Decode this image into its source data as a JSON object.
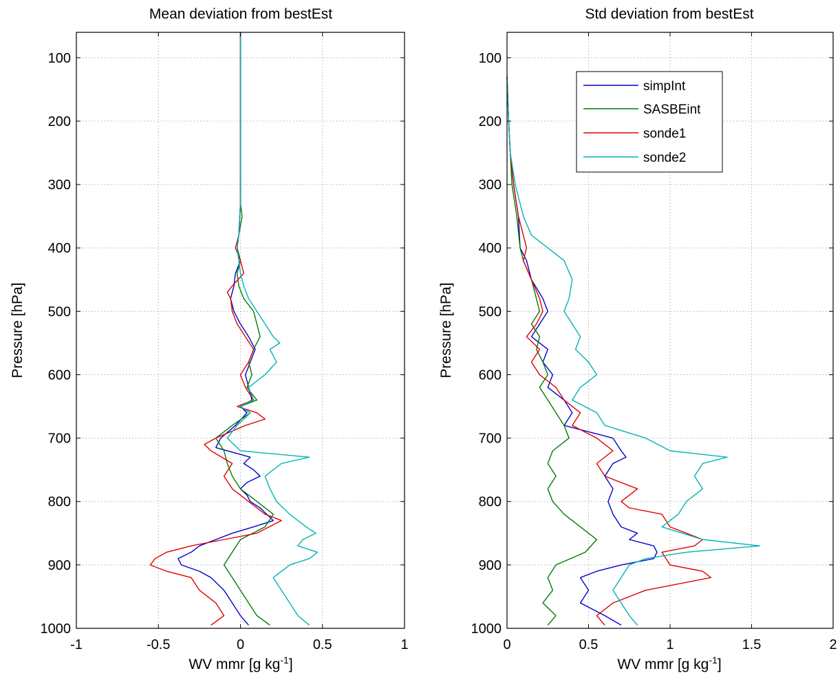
{
  "chart_data": [
    {
      "type": "line",
      "title": "Mean deviation from bestEst",
      "xlabel": "WV mmr [g kg",
      "xlabel_exp": "-1",
      "xlabel_end": "]",
      "ylabel": "Pressure [hPa]",
      "xlim": [
        -1,
        1
      ],
      "ylim": [
        1000,
        60
      ],
      "y_reversed": true,
      "grid": true,
      "xticks": [
        -1,
        -0.5,
        0,
        0.5,
        1
      ],
      "xtick_labels": [
        "-1",
        "-0.5",
        "0",
        "0.5",
        "1"
      ],
      "yticks": [
        100,
        200,
        300,
        400,
        500,
        600,
        700,
        800,
        900,
        1000
      ],
      "ytick_labels": [
        "100",
        "200",
        "300",
        "400",
        "500",
        "600",
        "700",
        "800",
        "900",
        "1000"
      ],
      "series": [
        {
          "name": "simpInt",
          "color": "#0000cc",
          "pressure": [
            60,
            300,
            330,
            380,
            400,
            420,
            440,
            460,
            480,
            500,
            520,
            540,
            560,
            580,
            600,
            620,
            640,
            650,
            660,
            680,
            700,
            715,
            730,
            740,
            750,
            760,
            770,
            780,
            790,
            800,
            810,
            820,
            830,
            840,
            850,
            860,
            870,
            880,
            890,
            900,
            910,
            920,
            940,
            960,
            980,
            995
          ],
          "value": [
            0,
            0,
            0,
            -0.01,
            -0.02,
            0.0,
            -0.03,
            -0.04,
            -0.06,
            -0.04,
            0.0,
            0.05,
            0.09,
            0.06,
            0.03,
            0.05,
            0.07,
            0.0,
            0.04,
            -0.03,
            -0.12,
            -0.15,
            0.06,
            0.02,
            0.08,
            0.12,
            0.04,
            0.0,
            0.04,
            0.06,
            0.12,
            0.16,
            0.2,
            0.08,
            -0.05,
            -0.15,
            -0.25,
            -0.3,
            -0.38,
            -0.36,
            -0.25,
            -0.18,
            -0.1,
            -0.05,
            0.0,
            0.05
          ]
        },
        {
          "name": "SASBEint",
          "color": "#007a00",
          "pressure": [
            60,
            300,
            330,
            350,
            380,
            400,
            420,
            440,
            460,
            480,
            500,
            520,
            540,
            560,
            580,
            600,
            620,
            640,
            650,
            660,
            680,
            700,
            720,
            740,
            760,
            780,
            800,
            820,
            840,
            860,
            880,
            900,
            920,
            940,
            960,
            980,
            995
          ],
          "value": [
            0,
            0,
            0,
            0.01,
            -0.01,
            -0.02,
            0.0,
            -0.02,
            -0.01,
            0.02,
            0.08,
            0.1,
            0.12,
            0.08,
            0.05,
            0.07,
            0.04,
            0.1,
            0.0,
            0.06,
            -0.05,
            -0.15,
            -0.1,
            -0.08,
            -0.05,
            0.0,
            0.1,
            0.2,
            0.15,
            0.0,
            -0.05,
            -0.1,
            -0.05,
            0.0,
            0.05,
            0.1,
            0.18
          ]
        },
        {
          "name": "sonde1",
          "color": "#dd0000",
          "pressure": [
            60,
            300,
            330,
            380,
            400,
            420,
            440,
            460,
            470,
            480,
            500,
            520,
            540,
            560,
            580,
            600,
            620,
            640,
            650,
            660,
            670,
            680,
            700,
            710,
            720,
            740,
            760,
            780,
            800,
            820,
            830,
            850,
            860,
            870,
            880,
            890,
            900,
            910,
            920,
            940,
            960,
            980,
            995
          ],
          "value": [
            0,
            0,
            0,
            -0.01,
            -0.03,
            0.0,
            0.02,
            -0.05,
            -0.08,
            -0.06,
            -0.05,
            -0.02,
            0.03,
            0.08,
            0.05,
            0.0,
            0.03,
            0.08,
            -0.02,
            0.1,
            0.15,
            0.03,
            -0.15,
            -0.22,
            -0.18,
            -0.05,
            -0.1,
            -0.05,
            0.05,
            0.15,
            0.25,
            0.1,
            -0.1,
            -0.3,
            -0.45,
            -0.52,
            -0.55,
            -0.45,
            -0.3,
            -0.25,
            -0.15,
            -0.1,
            -0.18
          ]
        },
        {
          "name": "sonde2",
          "color": "#00b3b3",
          "pressure": [
            60,
            300,
            330,
            380,
            400,
            420,
            440,
            460,
            480,
            500,
            520,
            540,
            550,
            560,
            580,
            600,
            620,
            640,
            650,
            660,
            680,
            700,
            720,
            730,
            740,
            760,
            780,
            800,
            820,
            840,
            850,
            860,
            870,
            880,
            890,
            900,
            920,
            940,
            960,
            980,
            995
          ],
          "value": [
            0,
            0,
            0,
            -0.01,
            -0.02,
            -0.01,
            0.0,
            0.02,
            0.05,
            0.1,
            0.15,
            0.2,
            0.24,
            0.18,
            0.22,
            0.15,
            0.05,
            0.08,
            0.0,
            0.06,
            -0.02,
            -0.08,
            0.0,
            0.42,
            0.25,
            0.15,
            0.18,
            0.22,
            0.3,
            0.4,
            0.46,
            0.38,
            0.35,
            0.47,
            0.42,
            0.3,
            0.2,
            0.25,
            0.3,
            0.35,
            0.42
          ]
        }
      ]
    },
    {
      "type": "line",
      "title": "Std deviation from bestEst",
      "xlabel": "WV mmr [g kg",
      "xlabel_exp": "-1",
      "xlabel_end": "]",
      "ylabel": "Pressure [hPa]",
      "xlim": [
        0,
        2
      ],
      "ylim": [
        1000,
        60
      ],
      "y_reversed": true,
      "grid": true,
      "legend_position": "top-right",
      "xticks": [
        0,
        0.5,
        1,
        1.5,
        2
      ],
      "xtick_labels": [
        "0",
        "0.5",
        "1",
        "1.5",
        "2"
      ],
      "yticks": [
        100,
        200,
        300,
        400,
        500,
        600,
        700,
        800,
        900,
        1000
      ],
      "ytick_labels": [
        "100",
        "200",
        "300",
        "400",
        "500",
        "600",
        "700",
        "800",
        "900",
        "1000"
      ],
      "series": [
        {
          "name": "simpInt",
          "color": "#0000cc",
          "pressure": [
            130,
            200,
            250,
            300,
            350,
            400,
            420,
            450,
            480,
            500,
            520,
            540,
            560,
            580,
            600,
            620,
            640,
            660,
            680,
            700,
            720,
            730,
            740,
            760,
            780,
            800,
            820,
            840,
            850,
            860,
            870,
            880,
            890,
            900,
            910,
            920,
            940,
            960,
            980,
            995
          ],
          "value": [
            0,
            0.01,
            0.02,
            0.04,
            0.07,
            0.08,
            0.12,
            0.15,
            0.22,
            0.25,
            0.2,
            0.15,
            0.25,
            0.22,
            0.28,
            0.25,
            0.35,
            0.4,
            0.35,
            0.65,
            0.7,
            0.73,
            0.65,
            0.6,
            0.65,
            0.62,
            0.65,
            0.7,
            0.8,
            0.75,
            0.9,
            0.92,
            0.9,
            0.7,
            0.55,
            0.45,
            0.5,
            0.45,
            0.6,
            0.7
          ]
        },
        {
          "name": "SASBEint",
          "color": "#007a00",
          "pressure": [
            130,
            200,
            250,
            300,
            350,
            400,
            420,
            450,
            480,
            500,
            520,
            540,
            560,
            580,
            600,
            620,
            640,
            660,
            680,
            700,
            720,
            740,
            760,
            780,
            800,
            820,
            840,
            860,
            880,
            900,
            920,
            940,
            960,
            980,
            995
          ],
          "value": [
            0,
            0.01,
            0.02,
            0.03,
            0.06,
            0.08,
            0.1,
            0.15,
            0.18,
            0.2,
            0.15,
            0.2,
            0.18,
            0.22,
            0.25,
            0.2,
            0.25,
            0.3,
            0.35,
            0.38,
            0.28,
            0.25,
            0.3,
            0.25,
            0.28,
            0.35,
            0.45,
            0.55,
            0.48,
            0.3,
            0.25,
            0.28,
            0.22,
            0.3,
            0.25
          ]
        },
        {
          "name": "sonde1",
          "color": "#dd0000",
          "pressure": [
            130,
            200,
            250,
            300,
            350,
            400,
            420,
            450,
            480,
            500,
            520,
            540,
            560,
            580,
            600,
            620,
            640,
            660,
            680,
            700,
            720,
            740,
            760,
            780,
            800,
            810,
            820,
            840,
            850,
            860,
            870,
            880,
            900,
            910,
            920,
            940,
            960,
            980,
            995
          ],
          "value": [
            0,
            0.01,
            0.02,
            0.04,
            0.07,
            0.12,
            0.1,
            0.15,
            0.2,
            0.22,
            0.18,
            0.12,
            0.2,
            0.15,
            0.2,
            0.3,
            0.35,
            0.45,
            0.4,
            0.55,
            0.65,
            0.55,
            0.6,
            0.8,
            0.7,
            0.75,
            0.95,
            1.0,
            1.1,
            1.2,
            1.15,
            0.95,
            1.0,
            1.2,
            1.25,
            0.85,
            0.65,
            0.55,
            0.6
          ]
        },
        {
          "name": "sonde2",
          "color": "#00b3b3",
          "pressure": [
            130,
            200,
            250,
            300,
            350,
            380,
            400,
            420,
            450,
            480,
            500,
            520,
            540,
            560,
            580,
            600,
            620,
            640,
            660,
            680,
            700,
            720,
            730,
            740,
            760,
            780,
            800,
            820,
            840,
            860,
            870,
            880,
            890,
            900,
            920,
            940,
            960,
            980,
            995
          ],
          "value": [
            0,
            0.01,
            0.02,
            0.05,
            0.1,
            0.15,
            0.25,
            0.35,
            0.4,
            0.38,
            0.35,
            0.4,
            0.45,
            0.42,
            0.5,
            0.55,
            0.45,
            0.4,
            0.55,
            0.6,
            0.85,
            1.0,
            1.35,
            1.2,
            1.15,
            1.2,
            1.1,
            1.05,
            0.95,
            1.2,
            1.55,
            1.1,
            0.85,
            0.75,
            0.7,
            0.65,
            0.7,
            0.75,
            0.8
          ]
        }
      ]
    }
  ]
}
